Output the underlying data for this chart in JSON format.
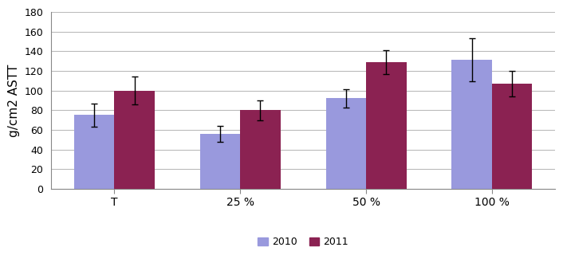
{
  "categories": [
    "T",
    "25 %",
    "50 %",
    "100 %"
  ],
  "values_2010": [
    75,
    56,
    92,
    131
  ],
  "values_2011": [
    100,
    80,
    129,
    107
  ],
  "errors_2010": [
    12,
    8,
    9,
    22
  ],
  "errors_2011": [
    14,
    10,
    12,
    13
  ],
  "color_2010": "#9999DD",
  "color_2011": "#8B2252",
  "ylabel": "g/cm2 ASTT",
  "ylim": [
    0,
    180
  ],
  "yticks": [
    0,
    20,
    40,
    60,
    80,
    100,
    120,
    140,
    160,
    180
  ],
  "legend_2010": "2010",
  "legend_2011": "2011",
  "bar_width": 0.32,
  "background_color": "#ffffff",
  "grid_color": "#bbbbbb"
}
